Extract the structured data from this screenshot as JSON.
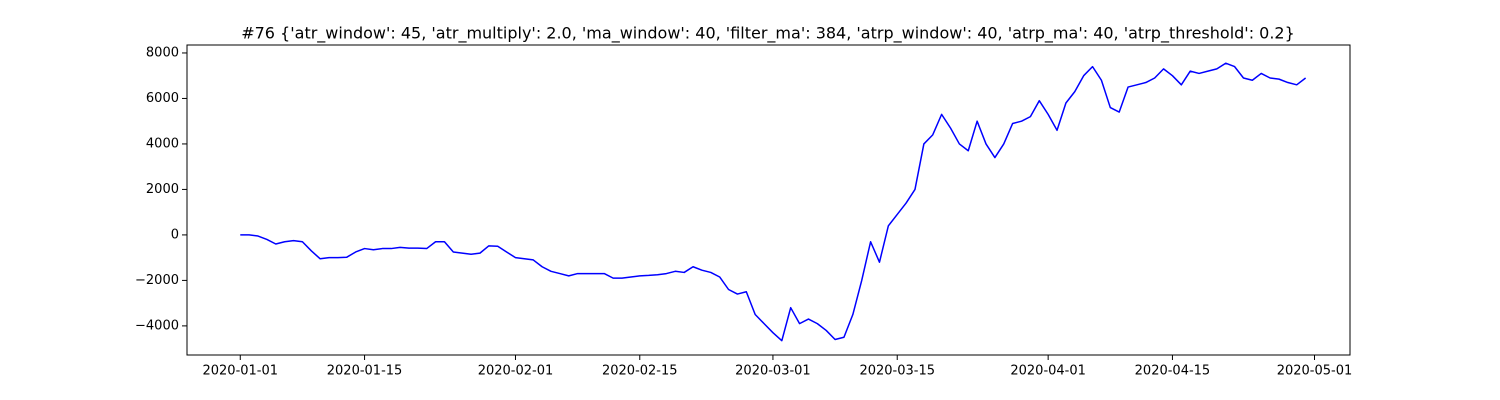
{
  "chart_data": {
    "type": "line",
    "title": "#76 {'atr_window': 45, 'atr_multiply': 2.0, 'ma_window': 40, 'filter_ma': 384, 'atrp_window': 40, 'atrp_ma': 40, 'atrp_threshold': 0.2}",
    "x": [
      "2020-01-01",
      "2020-01-02",
      "2020-01-03",
      "2020-01-04",
      "2020-01-05",
      "2020-01-06",
      "2020-01-07",
      "2020-01-08",
      "2020-01-09",
      "2020-01-10",
      "2020-01-11",
      "2020-01-12",
      "2020-01-13",
      "2020-01-14",
      "2020-01-15",
      "2020-01-16",
      "2020-01-17",
      "2020-01-18",
      "2020-01-19",
      "2020-01-20",
      "2020-01-21",
      "2020-01-22",
      "2020-01-23",
      "2020-01-24",
      "2020-01-25",
      "2020-01-26",
      "2020-01-27",
      "2020-01-28",
      "2020-01-29",
      "2020-01-30",
      "2020-01-31",
      "2020-02-01",
      "2020-02-02",
      "2020-02-03",
      "2020-02-04",
      "2020-02-05",
      "2020-02-06",
      "2020-02-07",
      "2020-02-08",
      "2020-02-09",
      "2020-02-10",
      "2020-02-11",
      "2020-02-12",
      "2020-02-13",
      "2020-02-14",
      "2020-02-15",
      "2020-02-16",
      "2020-02-17",
      "2020-02-18",
      "2020-02-19",
      "2020-02-20",
      "2020-02-21",
      "2020-02-22",
      "2020-02-23",
      "2020-02-24",
      "2020-02-25",
      "2020-02-26",
      "2020-02-27",
      "2020-02-28",
      "2020-02-29",
      "2020-03-01",
      "2020-03-02",
      "2020-03-03",
      "2020-03-04",
      "2020-03-05",
      "2020-03-06",
      "2020-03-07",
      "2020-03-08",
      "2020-03-09",
      "2020-03-10",
      "2020-03-11",
      "2020-03-12",
      "2020-03-13",
      "2020-03-14",
      "2020-03-15",
      "2020-03-16",
      "2020-03-17",
      "2020-03-18",
      "2020-03-19",
      "2020-03-20",
      "2020-03-21",
      "2020-03-22",
      "2020-03-23",
      "2020-03-24",
      "2020-03-25",
      "2020-03-26",
      "2020-03-27",
      "2020-03-28",
      "2020-03-29",
      "2020-03-30",
      "2020-03-31",
      "2020-04-01",
      "2020-04-02",
      "2020-04-03",
      "2020-04-04",
      "2020-04-05",
      "2020-04-06",
      "2020-04-07",
      "2020-04-08",
      "2020-04-09",
      "2020-04-10",
      "2020-04-11",
      "2020-04-12",
      "2020-04-13",
      "2020-04-14",
      "2020-04-15",
      "2020-04-16",
      "2020-04-17",
      "2020-04-18",
      "2020-04-19",
      "2020-04-20",
      "2020-04-21",
      "2020-04-22",
      "2020-04-23",
      "2020-04-24",
      "2020-04-25",
      "2020-04-26",
      "2020-04-27",
      "2020-04-28",
      "2020-04-29",
      "2020-04-30"
    ],
    "series": [
      {
        "color": "#0000ff",
        "values": [
          0,
          0,
          -50,
          -200,
          -400,
          -300,
          -250,
          -300,
          -700,
          -1050,
          -1000,
          -1000,
          -980,
          -750,
          -600,
          -650,
          -600,
          -600,
          -550,
          -580,
          -580,
          -600,
          -300,
          -300,
          -750,
          -800,
          -850,
          -800,
          -480,
          -500,
          -750,
          -1000,
          -1050,
          -1100,
          -1400,
          -1600,
          -1700,
          -1800,
          -1700,
          -1700,
          -1700,
          -1700,
          -1900,
          -1900,
          -1850,
          -1800,
          -1780,
          -1750,
          -1700,
          -1600,
          -1650,
          -1400,
          -1550,
          -1650,
          -1850,
          -2400,
          -2600,
          -2500,
          -3500,
          -3900,
          -4300,
          -4650,
          -3200,
          -3900,
          -3700,
          -3900,
          -4200,
          -4600,
          -4500,
          -3500,
          -2000,
          -300,
          -1200,
          400,
          900,
          1400,
          2000,
          4000,
          4400,
          5300,
          4700,
          4000,
          3700,
          5000,
          4000,
          3400,
          4000,
          4900,
          5000,
          5200,
          5900,
          5300,
          4600,
          5800,
          6300,
          7000,
          7400,
          6800,
          5600,
          5400,
          6500,
          6600,
          6700,
          6900,
          7300,
          7000,
          6600,
          7200,
          7100,
          7200,
          7300,
          7550,
          7400,
          6900,
          6800,
          7100,
          6900,
          6850,
          6700,
          6600,
          6900
        ]
      }
    ],
    "xlim": [
      "2019-12-26",
      "2020-05-05"
    ],
    "xticks": [
      "2020-01-01",
      "2020-01-15",
      "2020-02-01",
      "2020-02-15",
      "2020-03-01",
      "2020-03-15",
      "2020-04-01",
      "2020-04-15",
      "2020-05-01"
    ],
    "ylim": [
      -5280,
      8350
    ],
    "yticks": [
      {
        "value": -4000,
        "label": "−4000"
      },
      {
        "value": -2000,
        "label": "−2000"
      },
      0,
      2000,
      4000,
      6000,
      8000
    ]
  }
}
